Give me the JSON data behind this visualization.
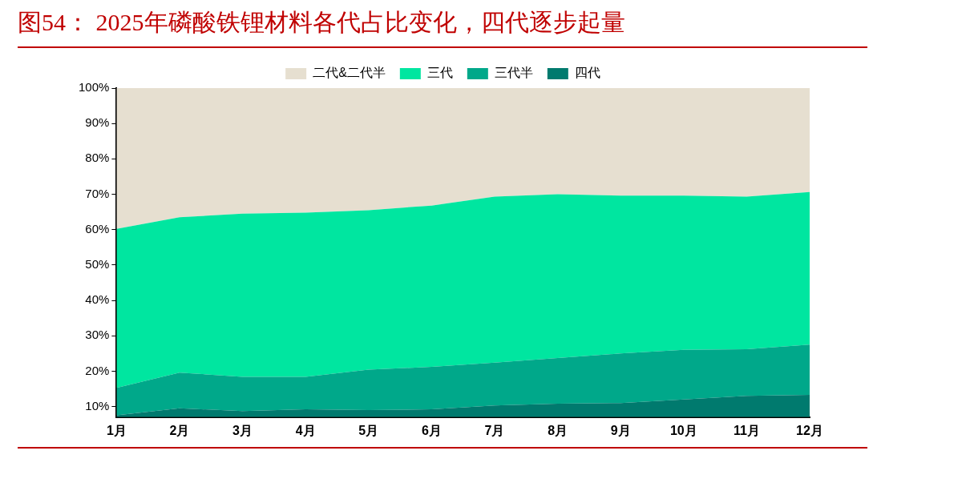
{
  "chart_data": {
    "type": "area",
    "title": "图54：  2025年磷酸铁锂材料各代占比变化，四代逐步起量",
    "categories": [
      "1月",
      "2月",
      "3月",
      "4月",
      "5月",
      "6月",
      "7月",
      "8月",
      "9月",
      "10月",
      "11月",
      "12月"
    ],
    "series": [
      {
        "name": "四代",
        "color": "#007a6e",
        "values": [
          7.5,
          9.5,
          8.7,
          9.2,
          9.0,
          9.2,
          10.3,
          10.8,
          11,
          12,
          13,
          13.3
        ]
      },
      {
        "name": "三代半",
        "color": "#00a88a",
        "values": [
          7.8,
          10.1,
          9.7,
          9.2,
          11.4,
          12.0,
          12.1,
          12.9,
          14,
          14,
          13.2,
          14.2
        ]
      },
      {
        "name": "三代",
        "color": "#00e6a0",
        "values": [
          44.9,
          43.9,
          46.1,
          46.4,
          45.1,
          45.6,
          46.9,
          46.3,
          44.6,
          43.6,
          43.1,
          43.1
        ]
      },
      {
        "name": "二代&二代半",
        "color": "#e6dfd0",
        "values": [
          39.8,
          36.5,
          35.5,
          35.2,
          34.5,
          33.2,
          30.7,
          30,
          30.4,
          30.4,
          30.7,
          29.4
        ]
      }
    ],
    "stacked": true,
    "ylim": [
      7,
      100
    ],
    "yticks": [
      {
        "value": 10,
        "label": "10%"
      },
      {
        "value": 20,
        "label": "20%"
      },
      {
        "value": 30,
        "label": "30%"
      },
      {
        "value": 40,
        "label": "40%"
      },
      {
        "value": 50,
        "label": "50%"
      },
      {
        "value": 60,
        "label": "60%"
      },
      {
        "value": 70,
        "label": "70%"
      },
      {
        "value": 80,
        "label": "80%"
      },
      {
        "value": 90,
        "label": "90%"
      },
      {
        "value": 100,
        "label": "100%"
      }
    ],
    "grid": false,
    "legend": "top"
  }
}
